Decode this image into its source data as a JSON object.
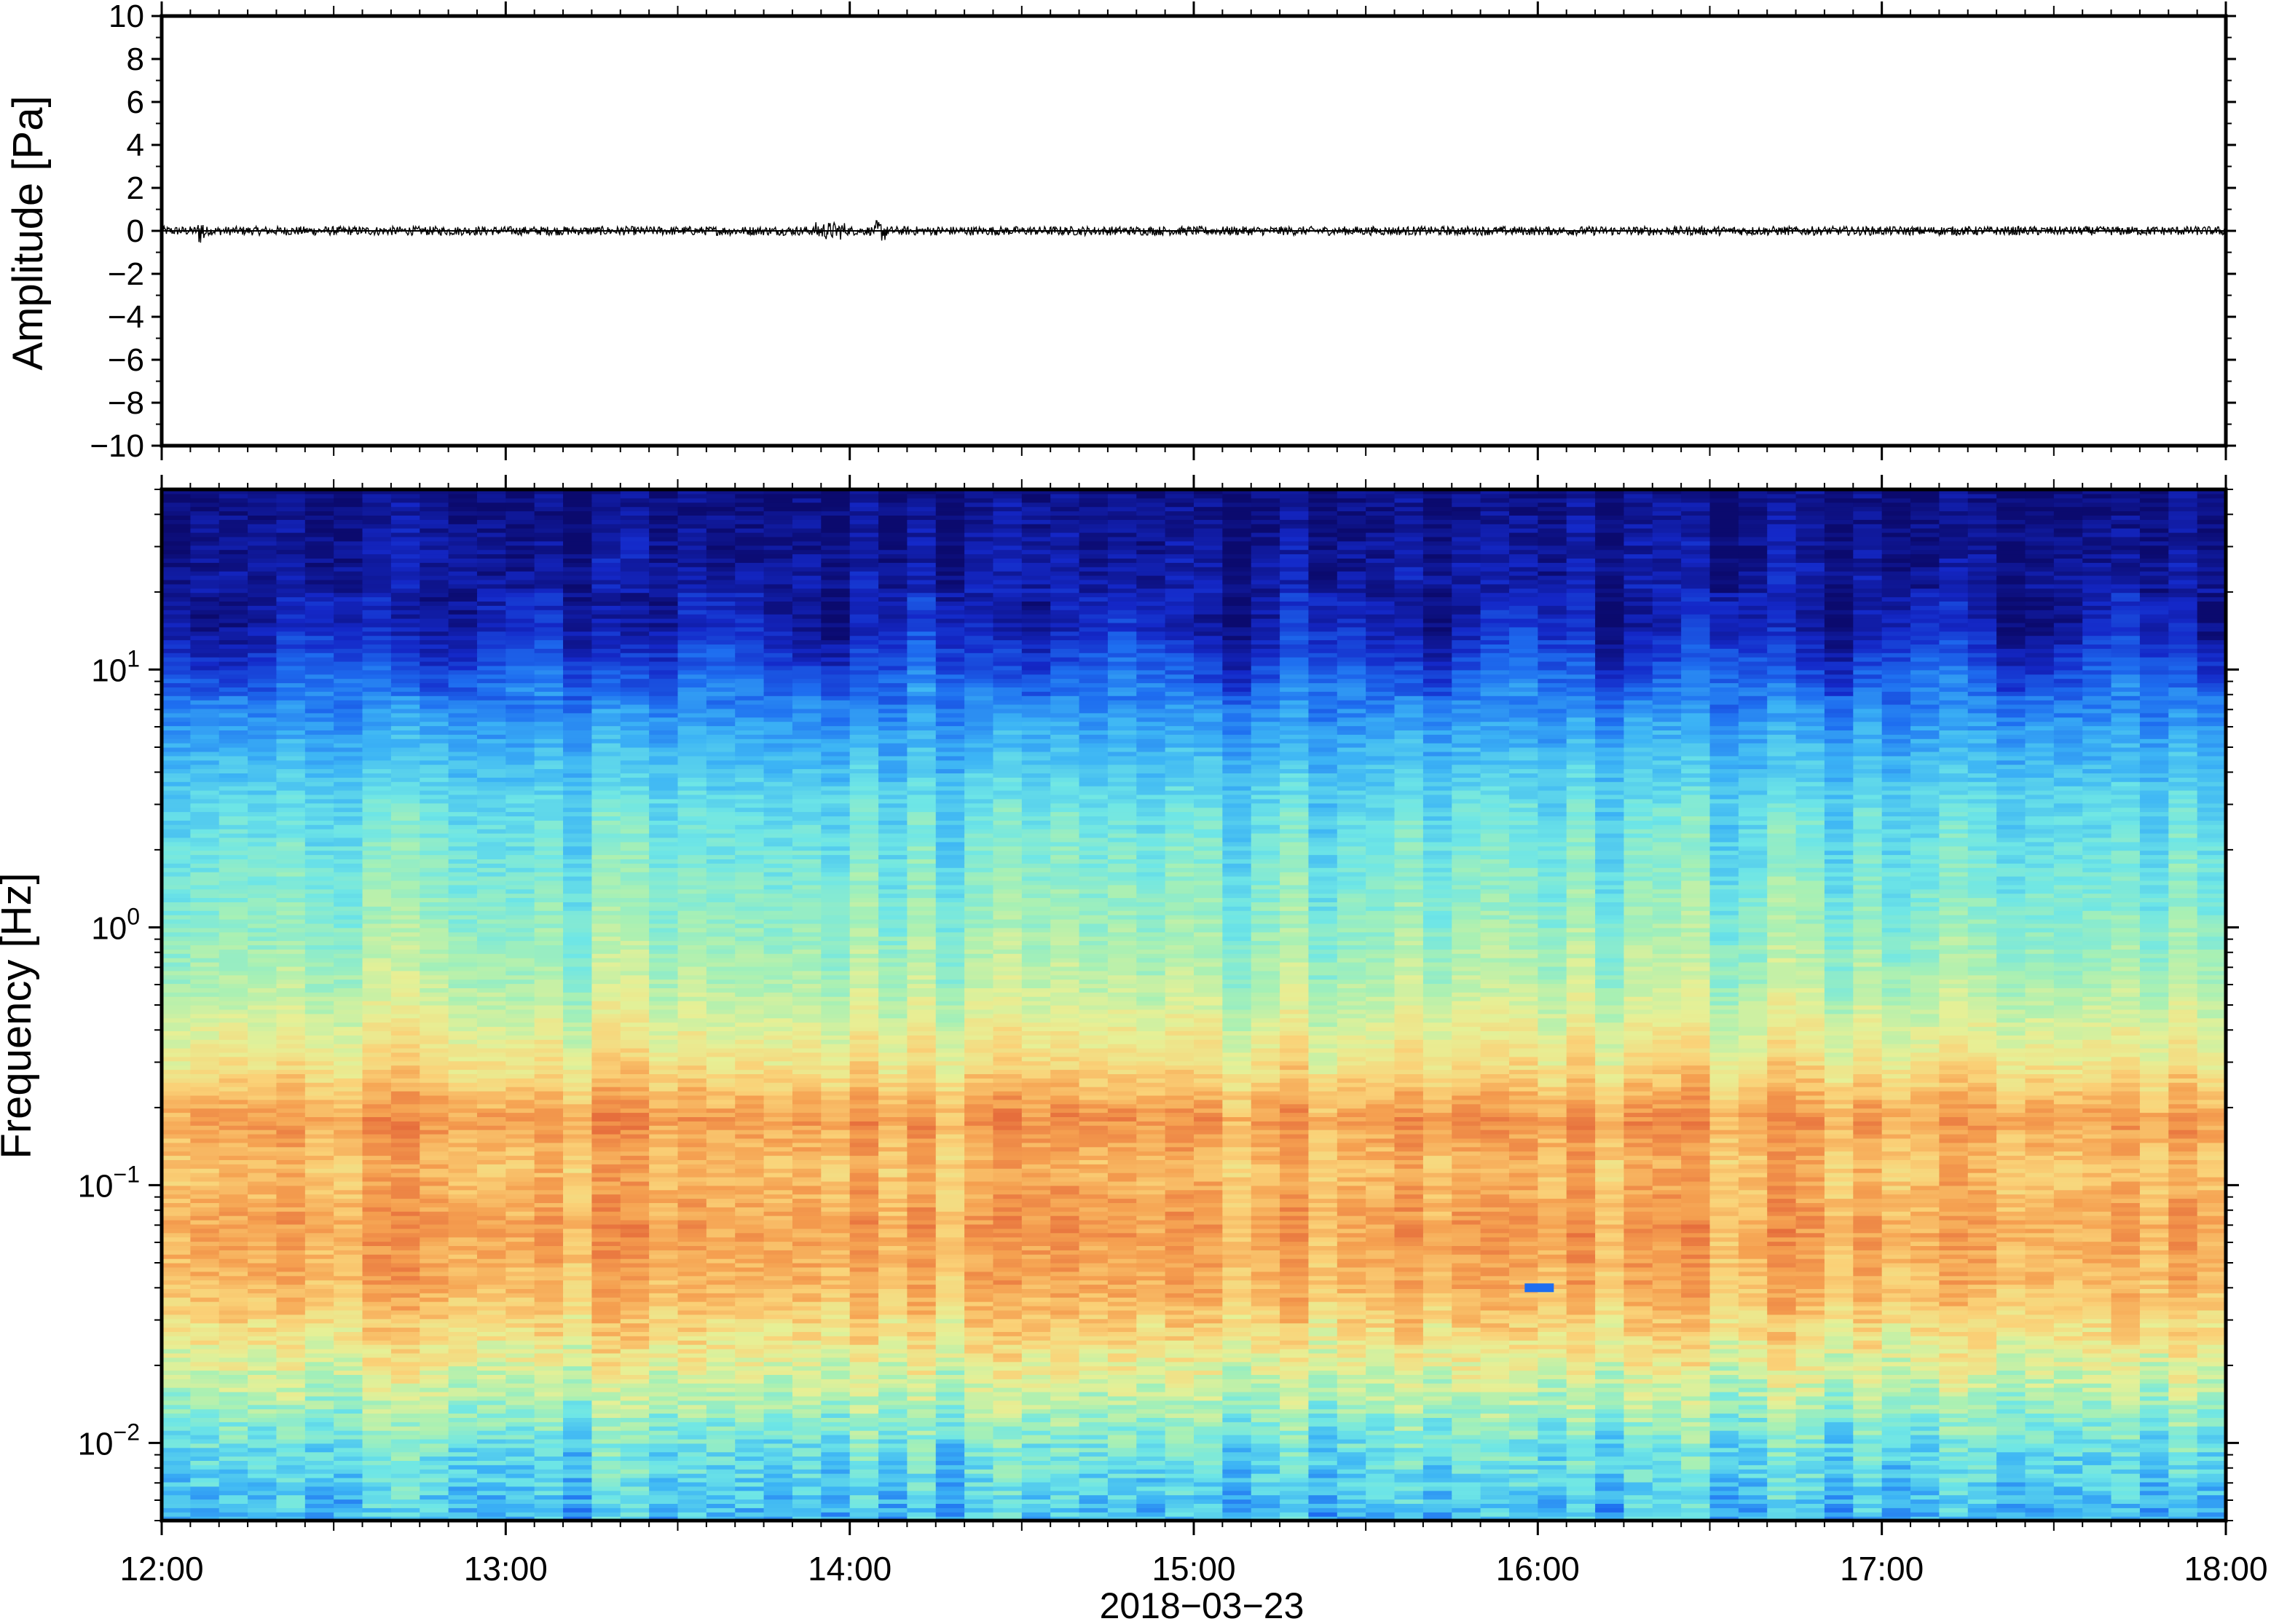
{
  "chart_data": [
    {
      "type": "line",
      "ylabel": "Amplitude [Pa]",
      "xlabel": "",
      "ylim": [
        -10,
        10
      ],
      "yticks": [
        -10,
        -8,
        -6,
        -4,
        -2,
        0,
        2,
        4,
        6,
        8,
        10
      ],
      "ytick_labels": [
        "−10",
        "−8",
        "−6",
        "−4",
        "−2",
        "0",
        "2",
        "4",
        "6",
        "8",
        "10"
      ],
      "xlim": [
        "2018-03-23 12:00",
        "2018-03-23 18:00"
      ],
      "series": [
        {
          "values_summary": "pressure waveform fluctuating around 0 Pa, peak excursions about ±0.5 Pa",
          "x": [
            "12:00",
            "12:30",
            "13:00",
            "13:30",
            "14:00",
            "14:30",
            "15:00",
            "15:30",
            "16:00",
            "16:30",
            "17:00",
            "17:30",
            "18:00"
          ],
          "y": [
            0.0,
            0.0,
            0.0,
            0.0,
            0.0,
            0.0,
            0.0,
            0.0,
            0.0,
            0.0,
            0.0,
            0.0,
            0.0
          ]
        }
      ],
      "grid": false
    },
    {
      "type": "heatmap",
      "ylabel": "Frequency [Hz]",
      "xlabel": "2018−03−23",
      "yscale": "log",
      "ylim": [
        0.005,
        50
      ],
      "yticks": [
        {
          "base": "10",
          "exp": "−2",
          "value": 0.01
        },
        {
          "base": "10",
          "exp": "−1",
          "value": 0.1
        },
        {
          "base": "10",
          "exp": "0",
          "value": 1
        },
        {
          "base": "10",
          "exp": "1",
          "value": 10
        }
      ],
      "xticks": [
        "12:00",
        "13:00",
        "14:00",
        "15:00",
        "16:00",
        "17:00",
        "18:00"
      ],
      "xlim": [
        "2018-03-23 12:00",
        "2018-03-23 18:00"
      ],
      "colormap": [
        "#0b0a6e",
        "#1428c8",
        "#1e6ef0",
        "#3cb4f5",
        "#6ee6e6",
        "#a8f0b4",
        "#e6f096",
        "#fad278",
        "#f5a050",
        "#e66e3c"
      ],
      "profile_by_frequency": [
        {
          "freq_hz": 0.005,
          "level": 0.34
        },
        {
          "freq_hz": 0.01,
          "level": 0.45
        },
        {
          "freq_hz": 0.02,
          "level": 0.66
        },
        {
          "freq_hz": 0.04,
          "level": 0.84
        },
        {
          "freq_hz": 0.07,
          "level": 0.88
        },
        {
          "freq_hz": 0.12,
          "level": 0.82
        },
        {
          "freq_hz": 0.18,
          "level": 0.9
        },
        {
          "freq_hz": 0.3,
          "level": 0.72
        },
        {
          "freq_hz": 0.6,
          "level": 0.58
        },
        {
          "freq_hz": 1.0,
          "level": 0.52
        },
        {
          "freq_hz": 3.0,
          "level": 0.42
        },
        {
          "freq_hz": 6.0,
          "level": 0.3
        },
        {
          "freq_hz": 10.0,
          "level": 0.18
        },
        {
          "freq_hz": 15.0,
          "level": 0.08
        },
        {
          "freq_hz": 50.0,
          "level": 0.02
        }
      ],
      "annotations": [
        {
          "time": "16:00",
          "freq_hz": 0.04,
          "note": "short blue patch"
        }
      ]
    }
  ],
  "colors": {
    "frame": "#000000",
    "trace": "#000000",
    "background": "#ffffff"
  }
}
